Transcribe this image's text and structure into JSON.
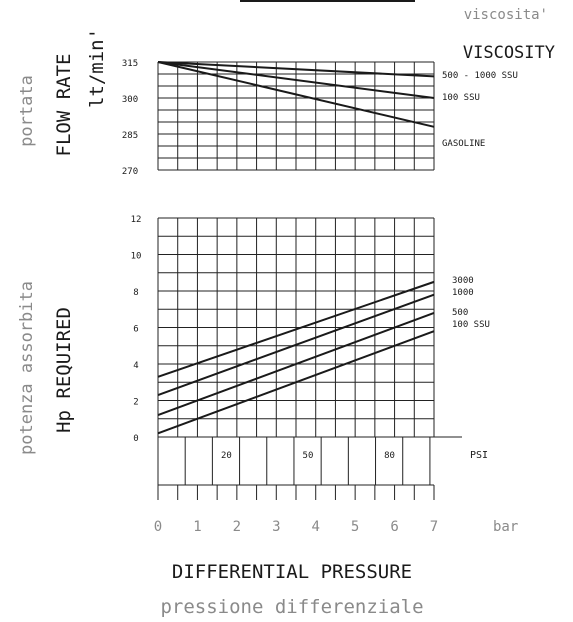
{
  "colors": {
    "ink": "#1a1a1a",
    "grey": "#8a8a8a",
    "grid": "#222222"
  },
  "header": {
    "viscosity_it": "viscosita'",
    "viscosity_en": "VISCOSITY"
  },
  "left_labels": {
    "flow_it": "portata",
    "flow_en": "FLOW RATE",
    "flow_unit": "lt/min'",
    "hp_it": "potenza assorbita",
    "hp_en": "Hp REQUIRED"
  },
  "footer": {
    "bar_unit": "bar",
    "psi_unit": "PSI",
    "title_en": "DIFFERENTIAL PRESSURE",
    "title_it": "pressione differenziale"
  },
  "chart_data": [
    {
      "type": "line",
      "title": "FLOW RATE",
      "ylabel": "lt/min'",
      "xlabel": "DIFFERENTIAL PRESSURE",
      "x_ticks": [
        "0",
        "1",
        "2",
        "3",
        "4",
        "5",
        "6",
        "7"
      ],
      "y_ticks": [
        "315",
        "300",
        "285",
        "270"
      ],
      "ylim": [
        270,
        315
      ],
      "xlim": [
        0,
        7
      ],
      "grid": true,
      "legend": "right, at line ends",
      "series": [
        {
          "name": "500 - 1000 SSU",
          "x": [
            0,
            7
          ],
          "y": [
            315,
            309
          ]
        },
        {
          "name": "100 SSU",
          "x": [
            0,
            7
          ],
          "y": [
            315,
            300
          ]
        },
        {
          "name": "GASOLINE",
          "x": [
            0,
            7
          ],
          "y": [
            315,
            288
          ]
        }
      ]
    },
    {
      "type": "line",
      "title": "Hp REQUIRED",
      "xlabel": "DIFFERENTIAL PRESSURE",
      "x_ticks": [
        "0",
        "1",
        "2",
        "3",
        "4",
        "5",
        "6",
        "7"
      ],
      "y_ticks": [
        "12",
        "10",
        "8",
        "6",
        "4",
        "2",
        "0"
      ],
      "ylim": [
        0,
        12
      ],
      "xlim": [
        0,
        7
      ],
      "grid": true,
      "legend": "right, at line ends",
      "series": [
        {
          "name": "3000",
          "x": [
            0,
            7
          ],
          "y": [
            3.3,
            8.5
          ]
        },
        {
          "name": "1000",
          "x": [
            0,
            7
          ],
          "y": [
            2.3,
            7.8
          ]
        },
        {
          "name": "500",
          "x": [
            0,
            7
          ],
          "y": [
            1.2,
            6.8
          ]
        },
        {
          "name": "100 SSU",
          "x": [
            0,
            7
          ],
          "y": [
            0.2,
            5.8
          ]
        }
      ],
      "secondary_x_ticks": [
        "20",
        "50",
        "80"
      ]
    }
  ]
}
